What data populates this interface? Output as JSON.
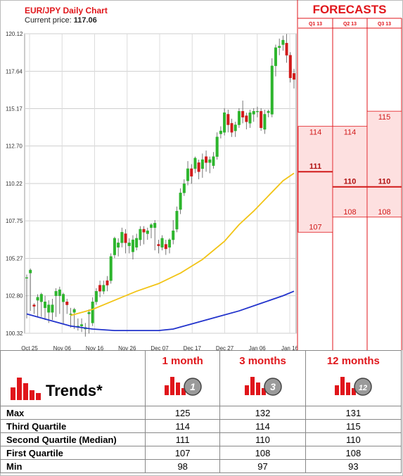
{
  "header": {
    "title": "EUR/JPY Daily Chart",
    "price_label": "Current price:",
    "price_value": "117.06",
    "forecasts_title": "FORECASTS"
  },
  "colors": {
    "accent": "#e0161b",
    "bull": "#2db52d",
    "bear": "#d11b1b",
    "ma_short": "#f2c416",
    "ma_long": "#2233cc",
    "forecast_fill": "#fde0e0"
  },
  "chart_data": {
    "type": "candlestick",
    "title": "EUR/JPY Daily Chart",
    "ylim": [
      100.32,
      120.12
    ],
    "y_ticks": [
      "120.12",
      "117.64",
      "115.17",
      "112.70",
      "110.22",
      "107.75",
      "105.27",
      "102.80",
      "100.32"
    ],
    "x_ticks": [
      "Oct 25",
      "Nov 06",
      "Nov 16",
      "Nov 26",
      "Dec 07",
      "Dec 17",
      "Dec 27",
      "Jan 06",
      "Jan 16"
    ],
    "candles": [
      [
        104.0,
        104.0,
        101.9,
        101.3,
        104.2
      ],
      [
        104.3,
        104.5,
        101.9,
        101.8,
        104.6
      ],
      [
        102.2,
        102.1,
        101.8,
        101.6,
        102.3
      ],
      [
        102.5,
        102.7,
        101.7,
        101.4,
        102.9
      ],
      [
        102.4,
        102.9,
        101.8,
        101.4,
        103.0
      ],
      [
        102.0,
        102.4,
        101.7,
        101.2,
        102.8
      ],
      [
        101.7,
        102.2,
        101.4,
        101.0,
        102.5
      ],
      [
        101.7,
        102.2,
        101.5,
        101.2,
        102.6
      ],
      [
        102.8,
        103.1,
        101.9,
        101.4,
        103.3
      ],
      [
        102.8,
        103.2,
        101.8,
        101.6,
        103.4
      ],
      [
        102.4,
        102.9,
        101.6,
        100.9,
        103.0
      ],
      [
        102.4,
        102.2,
        101.8,
        101.6,
        102.6
      ],
      [
        101.6,
        101.6,
        100.9,
        100.7,
        102.0
      ],
      [
        101.7,
        101.9,
        101.0,
        100.6,
        102.0
      ],
      [
        100.8,
        100.8,
        100.6,
        100.5,
        101.3
      ],
      [
        100.8,
        100.9,
        100.5,
        100.4,
        101.3
      ],
      [
        100.6,
        100.7,
        100.4,
        100.1,
        101.0
      ],
      [
        101.6,
        101.7,
        100.6,
        100.3,
        101.9
      ],
      [
        101.0,
        102.4,
        101.0,
        100.8,
        102.7
      ],
      [
        102.4,
        103.1,
        102.4,
        102.2,
        103.3
      ],
      [
        103.5,
        103.1,
        102.9,
        102.7,
        103.8
      ],
      [
        103.1,
        103.5,
        103.1,
        102.9,
        103.8
      ],
      [
        103.8,
        103.5,
        103.4,
        103.1,
        104.1
      ],
      [
        103.8,
        105.4,
        103.8,
        103.6,
        105.6
      ],
      [
        105.5,
        106.6,
        105.5,
        105.3,
        106.7
      ],
      [
        106.0,
        106.3,
        105.7,
        105.4,
        106.6
      ],
      [
        106.3,
        107.0,
        106.2,
        106.0,
        107.3
      ],
      [
        106.9,
        106.3,
        105.9,
        105.6,
        107.2
      ],
      [
        106.1,
        106.3,
        105.8,
        105.6,
        106.6
      ],
      [
        105.7,
        106.5,
        105.5,
        105.2,
        106.8
      ],
      [
        106.0,
        106.6,
        106.0,
        105.8,
        106.9
      ],
      [
        106.5,
        107.2,
        106.4,
        106.1,
        107.4
      ],
      [
        107.2,
        107.0,
        106.5,
        106.2,
        107.4
      ],
      [
        106.9,
        107.1,
        106.7,
        106.5,
        107.3
      ],
      [
        107.3,
        107.5,
        106.9,
        106.6,
        107.6
      ],
      [
        107.3,
        107.6,
        106.2,
        105.8,
        107.8
      ],
      [
        106.2,
        106.1,
        105.8,
        105.6,
        106.5
      ],
      [
        106.0,
        106.6,
        106.0,
        105.8,
        106.8
      ],
      [
        106.2,
        105.9,
        105.7,
        105.5,
        106.5
      ],
      [
        106.0,
        106.5,
        105.9,
        105.6,
        106.6
      ],
      [
        106.5,
        107.1,
        106.5,
        106.2,
        107.8
      ],
      [
        107.2,
        108.4,
        107.2,
        107.0,
        108.7
      ],
      [
        108.5,
        109.6,
        108.4,
        108.2,
        109.9
      ],
      [
        109.6,
        110.2,
        109.6,
        109.4,
        110.5
      ],
      [
        110.4,
        111.2,
        110.4,
        110.1,
        111.7
      ],
      [
        111.2,
        110.7,
        110.6,
        110.2,
        111.5
      ],
      [
        111.2,
        111.9,
        111.2,
        110.9,
        112.0
      ],
      [
        111.6,
        111.0,
        110.8,
        110.5,
        111.8
      ],
      [
        111.2,
        111.8,
        110.9,
        110.6,
        112.2
      ],
      [
        112.0,
        111.6,
        111.2,
        111.0,
        112.4
      ],
      [
        111.6,
        111.8,
        111.2,
        110.9,
        112.0
      ],
      [
        111.4,
        112.0,
        111.4,
        111.2,
        112.3
      ],
      [
        112.0,
        113.3,
        112.0,
        111.8,
        113.6
      ],
      [
        113.5,
        113.7,
        113.3,
        113.2,
        114.0
      ],
      [
        113.6,
        114.9,
        113.6,
        113.4,
        115.2
      ],
      [
        114.8,
        114.1,
        113.9,
        113.6,
        115.1
      ],
      [
        114.2,
        113.6,
        113.5,
        113.3,
        114.5
      ],
      [
        113.7,
        114.1,
        113.6,
        113.3,
        114.3
      ],
      [
        114.1,
        115.0,
        114.1,
        113.9,
        115.2
      ],
      [
        115.0,
        114.6,
        114.5,
        114.2,
        115.7
      ],
      [
        114.7,
        114.3,
        114.1,
        113.8,
        114.9
      ],
      [
        114.2,
        114.9,
        114.2,
        113.9,
        115.1
      ],
      [
        114.8,
        115.0,
        114.6,
        114.3,
        115.2
      ],
      [
        115.0,
        115.0,
        114.8,
        114.6,
        115.3
      ],
      [
        115.0,
        113.9,
        113.8,
        113.7,
        115.2
      ],
      [
        113.8,
        114.8,
        113.8,
        113.5,
        115.1
      ],
      [
        114.9,
        115.0,
        114.8,
        114.6,
        115.1
      ],
      [
        114.8,
        118.0,
        114.8,
        114.6,
        118.5
      ],
      [
        118.0,
        119.2,
        117.6,
        117.3,
        119.4
      ],
      [
        119.2,
        119.3,
        119.0,
        118.7,
        119.8
      ],
      [
        119.4,
        119.7,
        119.3,
        119.0,
        120.0
      ],
      [
        119.5,
        118.7,
        118.5,
        118.2,
        120.1
      ],
      [
        118.7,
        117.2,
        117.1,
        116.9,
        118.9
      ],
      [
        117.5,
        117.1,
        116.8,
        116.5,
        117.8
      ]
    ],
    "ma_short": [
      [
        0,
        null
      ],
      [
        12,
        101.5
      ],
      [
        18,
        101.9
      ],
      [
        24,
        102.5
      ],
      [
        30,
        103.1
      ],
      [
        36,
        103.6
      ],
      [
        42,
        104.3
      ],
      [
        48,
        105.2
      ],
      [
        54,
        106.4
      ],
      [
        58,
        107.5
      ],
      [
        62,
        108.4
      ],
      [
        66,
        109.4
      ],
      [
        70,
        110.4
      ],
      [
        73,
        110.9
      ]
    ],
    "ma_long": [
      [
        0,
        101.6
      ],
      [
        6,
        101.2
      ],
      [
        12,
        100.8
      ],
      [
        18,
        100.6
      ],
      [
        24,
        100.5
      ],
      [
        30,
        100.5
      ],
      [
        36,
        100.5
      ],
      [
        40,
        100.6
      ],
      [
        46,
        101.0
      ],
      [
        52,
        101.4
      ],
      [
        58,
        101.8
      ],
      [
        64,
        102.3
      ],
      [
        70,
        102.8
      ],
      [
        73,
        103.1
      ]
    ],
    "forecast_periods": [
      "Q1 13",
      "Q2 13",
      "Q3 13"
    ],
    "forecast_bands": [
      {
        "upper": 114,
        "median": 111,
        "lower": 107,
        "upper_label": "114",
        "median_label": "111",
        "lower_label": "107"
      },
      {
        "upper": 114,
        "median": 110,
        "lower": 108,
        "upper_label": "114",
        "median_label": "110",
        "lower_label": "108"
      },
      {
        "upper": 115,
        "median": 110,
        "lower": 108,
        "upper_label": "115",
        "median_label": "110",
        "lower_label": "108"
      }
    ]
  },
  "trends_table": {
    "title": "Trends*",
    "columns": [
      {
        "label": "1 month",
        "icon_number": "1"
      },
      {
        "label": "3 months",
        "icon_number": "3"
      },
      {
        "label": "12 months",
        "icon_number": "12"
      }
    ],
    "rows": [
      {
        "label": "Max",
        "values": [
          "125",
          "132",
          "131"
        ]
      },
      {
        "label": "Third Quartile",
        "values": [
          "114",
          "114",
          "115"
        ]
      },
      {
        "label": "Second Quartile (Median)",
        "values": [
          "111",
          "110",
          "110"
        ]
      },
      {
        "label": "First Quartile",
        "values": [
          "107",
          "108",
          "108"
        ]
      },
      {
        "label": "Min",
        "values": [
          "98",
          "97",
          "93"
        ]
      }
    ]
  }
}
